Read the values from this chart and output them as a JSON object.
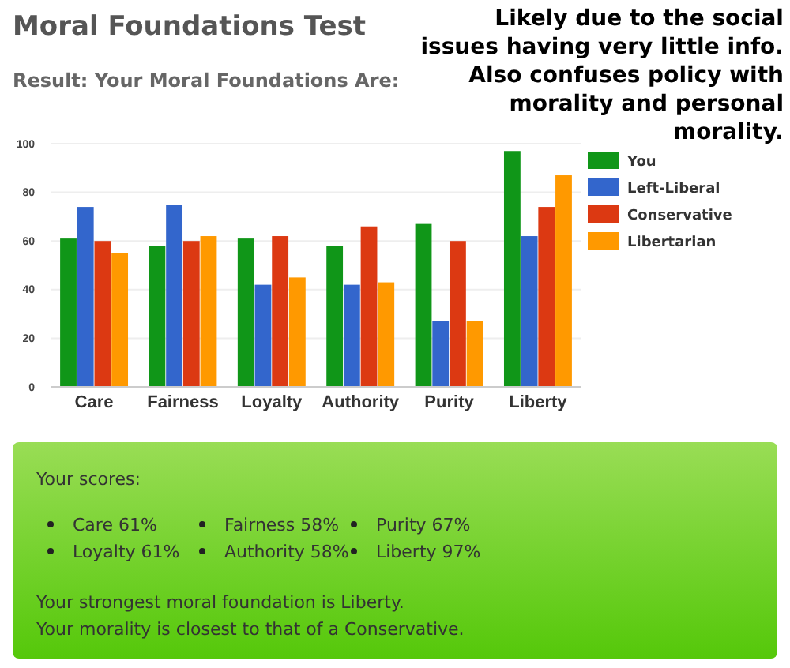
{
  "chart_data": [
    {
      "type": "bar",
      "title": "Moral Foundations Test",
      "subtitle": "Result: Your Moral Foundations Are:",
      "annotations": [
        "Likely due to the social issues having very little info. Also confuses policy with morality and personal morality."
      ],
      "categories": [
        "Care",
        "Fairness",
        "Loyalty",
        "Authority",
        "Purity",
        "Liberty"
      ],
      "series": [
        {
          "name": "You",
          "color": "#109618",
          "values": [
            61,
            58,
            61,
            58,
            67,
            97
          ]
        },
        {
          "name": "Left-Liberal",
          "color": "#3366cc",
          "values": [
            74,
            75,
            42,
            42,
            27,
            62
          ]
        },
        {
          "name": "Conservative",
          "color": "#dc3912",
          "values": [
            60,
            60,
            62,
            66,
            60,
            74
          ]
        },
        {
          "name": "Libertarian",
          "color": "#ff9900",
          "values": [
            55,
            62,
            45,
            43,
            27,
            87
          ]
        }
      ],
      "ylim": [
        0,
        100
      ],
      "yticks": [
        0,
        20,
        40,
        60,
        80,
        100
      ],
      "grid": "y",
      "legend": "right"
    },
    {
      "type": "other",
      "title": "Your scores:",
      "annotations": [
        "Care 61%",
        "Loyalty 61%",
        "Fairness 58%",
        "Authority 58%",
        "Purity 67%",
        "Liberty 97%",
        "Your strongest moral foundation is Liberty.",
        "Your morality is closest to that of a Conservative."
      ]
    }
  ]
}
